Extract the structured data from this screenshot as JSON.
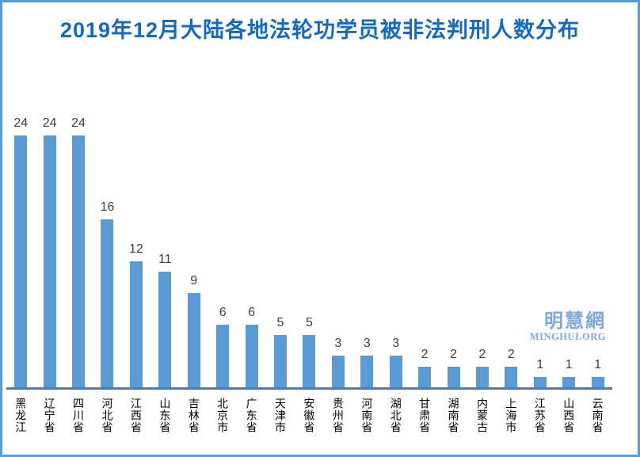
{
  "title": "2019年12月大陆各地法轮功学员被非法判刑人数分布",
  "watermark": {
    "logo": "明慧網",
    "url_text": "MINGHUI.ORG"
  },
  "colors": {
    "border": "#5b9bd5",
    "bar": "#5b9bd5",
    "axis": "#4a7ebb",
    "title": "#1269c7",
    "value_label": "#404040",
    "watermark": "#7fa8dc"
  },
  "chart_data": {
    "type": "bar",
    "title": "2019年12月大陆各地法轮功学员被非法判刑人数分布",
    "categories": [
      "黑龙江",
      "辽宁省",
      "四川省",
      "河北省",
      "江西省",
      "山东省",
      "吉林省",
      "北京市",
      "广东省",
      "天津市",
      "安徽省",
      "贵州省",
      "河南省",
      "湖北省",
      "甘肃省",
      "湖南省",
      "内蒙古",
      "上海市",
      "江苏省",
      "山西省",
      "云南省"
    ],
    "values": [
      24,
      24,
      24,
      16,
      12,
      11,
      9,
      6,
      6,
      5,
      5,
      3,
      3,
      3,
      2,
      2,
      2,
      2,
      1,
      1,
      1
    ],
    "xlabel": "",
    "ylabel": "",
    "ylim": [
      0,
      26
    ],
    "grid": false,
    "legend": false,
    "data_labels": true,
    "x_label_orientation": "vertical-stacked",
    "bar_color": "#5b9bd5"
  }
}
